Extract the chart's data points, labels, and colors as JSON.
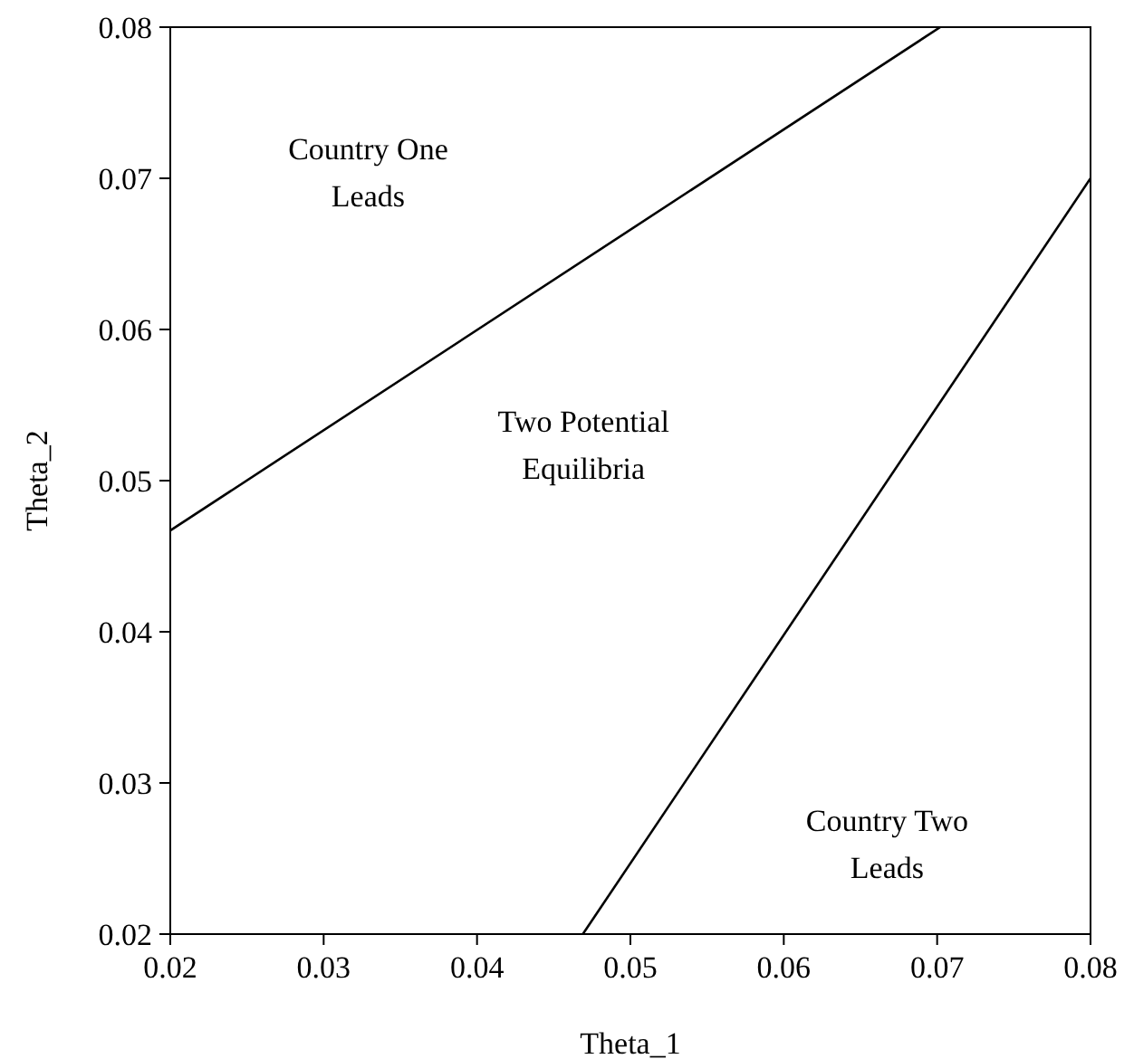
{
  "chart_data": {
    "type": "line",
    "xlabel": "Theta_1",
    "ylabel": "Theta_2",
    "xlim": [
      0.02,
      0.08
    ],
    "ylim": [
      0.02,
      0.08
    ],
    "xticks": [
      0.02,
      0.03,
      0.04,
      0.05,
      0.06,
      0.07,
      0.08
    ],
    "yticks": [
      0.02,
      0.03,
      0.04,
      0.05,
      0.06,
      0.07,
      0.08
    ],
    "grid": false,
    "marker": "none",
    "line_style": "solid",
    "series": [
      {
        "color": "#000000",
        "x": [
          0.02,
          0.0702
        ],
        "values": [
          0.0467,
          0.08
        ]
      },
      {
        "color": "#000000",
        "x": [
          0.0469,
          0.08
        ],
        "values": [
          0.02,
          0.07
        ]
      }
    ],
    "annotations": [
      "Country One\nLeads",
      "Two Potential\nEquilibria",
      "Country Two\nLeads"
    ]
  }
}
